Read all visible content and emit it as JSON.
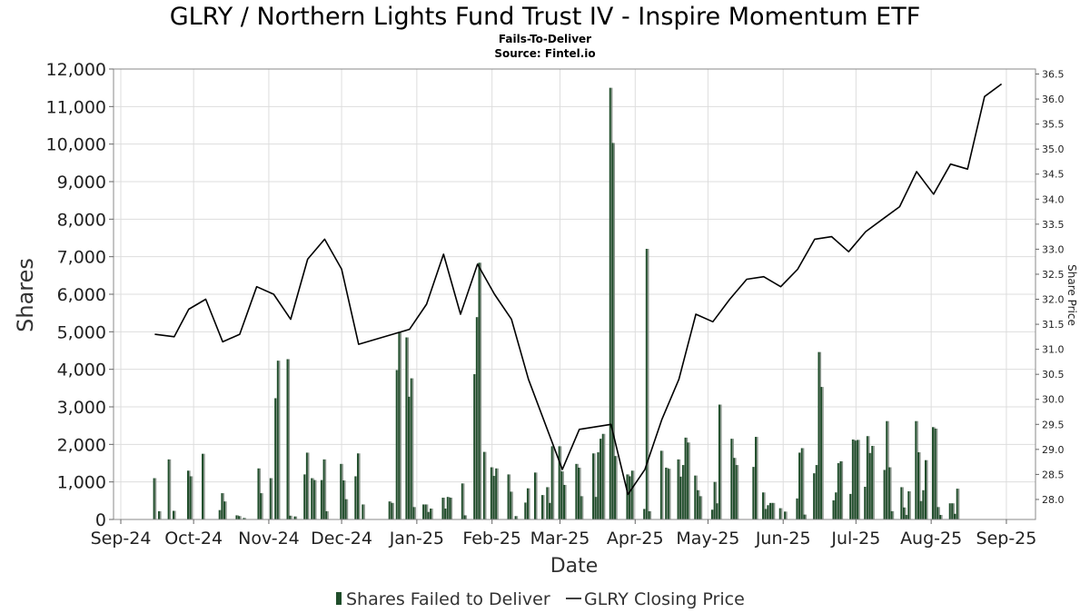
{
  "chart_data": {
    "type": "bar",
    "title": "GLRY / Northern Lights Fund Trust IV - Inspire Momentum ETF",
    "subtitle_lines": [
      "Fails-To-Deliver",
      "Source: Fintel.io"
    ],
    "xlabel": "Date",
    "ylabel": "Shares",
    "y2label": "Share Price",
    "ylim": [
      0,
      12000
    ],
    "y2lim": [
      27.6,
      36.6
    ],
    "y_ticks": [
      "0",
      "1,000",
      "2,000",
      "3,000",
      "4,000",
      "5,000",
      "6,000",
      "7,000",
      "8,000",
      "9,000",
      "10,000",
      "11,000",
      "12,000"
    ],
    "y2_ticks": [
      "28.0",
      "28.5",
      "29.0",
      "29.5",
      "30.0",
      "30.5",
      "31.0",
      "31.5",
      "32.0",
      "32.5",
      "33.0",
      "33.5",
      "34.0",
      "34.5",
      "35.0",
      "35.5",
      "36.0",
      "36.5"
    ],
    "x_range": [
      "2024-09-14",
      "2025-09-29"
    ],
    "x_ticks": [
      {
        "date": "2024-09-17",
        "label": "Sep-24"
      },
      {
        "date": "2024-10-17",
        "label": "Oct-24"
      },
      {
        "date": "2024-11-17",
        "label": "Nov-24"
      },
      {
        "date": "2024-12-17",
        "label": "Dec-24"
      },
      {
        "date": "2025-01-17",
        "label": "Jan-25"
      },
      {
        "date": "2025-02-17",
        "label": "Feb-25"
      },
      {
        "date": "2025-03-17",
        "label": "Mar-25"
      },
      {
        "date": "2025-04-17",
        "label": "Apr-25"
      },
      {
        "date": "2025-05-17",
        "label": "May-25"
      },
      {
        "date": "2025-06-17",
        "label": "Jun-25"
      },
      {
        "date": "2025-07-17",
        "label": "Jul-25"
      },
      {
        "date": "2025-08-17",
        "label": "Aug-25"
      },
      {
        "date": "2025-09-17",
        "label": "Sep-25"
      }
    ],
    "grid": true,
    "legend_position": "bottom-center",
    "series": [
      {
        "name": "Shares Failed to Deliver",
        "kind": "bar",
        "color": "#1f4d2a",
        "points": [
          [
            "2024-10-01",
            1100
          ],
          [
            "2024-10-03",
            220
          ],
          [
            "2024-10-07",
            1600
          ],
          [
            "2024-10-09",
            230
          ],
          [
            "2024-10-15",
            1300
          ],
          [
            "2024-10-16",
            1150
          ],
          [
            "2024-10-21",
            1750
          ],
          [
            "2024-10-28",
            250
          ],
          [
            "2024-10-29",
            700
          ],
          [
            "2024-10-30",
            480
          ],
          [
            "2024-11-04",
            110
          ],
          [
            "2024-11-05",
            90
          ],
          [
            "2024-11-07",
            40
          ],
          [
            "2024-11-13",
            1360
          ],
          [
            "2024-11-14",
            700
          ],
          [
            "2024-11-18",
            1100
          ],
          [
            "2024-11-20",
            3230
          ],
          [
            "2024-11-21",
            4230
          ],
          [
            "2024-11-25",
            4270
          ],
          [
            "2024-11-26",
            100
          ],
          [
            "2024-11-28",
            80
          ],
          [
            "2024-12-02",
            1200
          ],
          [
            "2024-12-03",
            1780
          ],
          [
            "2024-12-05",
            1100
          ],
          [
            "2024-12-06",
            1050
          ],
          [
            "2024-12-09",
            1050
          ],
          [
            "2024-12-10",
            1600
          ],
          [
            "2024-12-11",
            220
          ],
          [
            "2024-12-17",
            1480
          ],
          [
            "2024-12-18",
            1040
          ],
          [
            "2024-12-19",
            540
          ],
          [
            "2024-12-23",
            1150
          ],
          [
            "2024-12-24",
            1760
          ],
          [
            "2024-12-26",
            400
          ],
          [
            "2025-01-06",
            480
          ],
          [
            "2025-01-07",
            440
          ],
          [
            "2025-01-09",
            3980
          ],
          [
            "2025-01-10",
            5000
          ],
          [
            "2025-01-13",
            4850
          ],
          [
            "2025-01-14",
            3270
          ],
          [
            "2025-01-15",
            3760
          ],
          [
            "2025-01-16",
            330
          ],
          [
            "2025-01-20",
            400
          ],
          [
            "2025-01-21",
            400
          ],
          [
            "2025-01-22",
            200
          ],
          [
            "2025-01-23",
            290
          ],
          [
            "2025-01-28",
            580
          ],
          [
            "2025-01-29",
            290
          ],
          [
            "2025-01-30",
            600
          ],
          [
            "2025-01-31",
            580
          ],
          [
            "2025-02-05",
            960
          ],
          [
            "2025-02-06",
            110
          ],
          [
            "2025-02-10",
            3870
          ],
          [
            "2025-02-11",
            5390
          ],
          [
            "2025-02-12",
            6840
          ],
          [
            "2025-02-14",
            1800
          ],
          [
            "2025-02-17",
            1390
          ],
          [
            "2025-02-18",
            1160
          ],
          [
            "2025-02-19",
            1360
          ],
          [
            "2025-02-24",
            1200
          ],
          [
            "2025-02-25",
            740
          ],
          [
            "2025-02-27",
            90
          ],
          [
            "2025-03-03",
            450
          ],
          [
            "2025-03-04",
            830
          ],
          [
            "2025-03-07",
            1250
          ],
          [
            "2025-03-10",
            650
          ],
          [
            "2025-03-12",
            860
          ],
          [
            "2025-03-13",
            440
          ],
          [
            "2025-03-14",
            1950
          ],
          [
            "2025-03-17",
            1950
          ],
          [
            "2025-03-18",
            1280
          ],
          [
            "2025-03-19",
            920
          ],
          [
            "2025-03-24",
            1480
          ],
          [
            "2025-03-25",
            1380
          ],
          [
            "2025-03-26",
            620
          ],
          [
            "2025-03-31",
            1760
          ],
          [
            "2025-04-01",
            600
          ],
          [
            "2025-04-02",
            1790
          ],
          [
            "2025-04-03",
            2150
          ],
          [
            "2025-04-04",
            2280
          ],
          [
            "2025-04-07",
            11500
          ],
          [
            "2025-04-08",
            10030
          ],
          [
            "2025-04-09",
            1690
          ],
          [
            "2025-04-14",
            1200
          ],
          [
            "2025-04-15",
            1150
          ],
          [
            "2025-04-16",
            1300
          ],
          [
            "2025-04-21",
            280
          ],
          [
            "2025-04-22",
            7210
          ],
          [
            "2025-04-23",
            220
          ],
          [
            "2025-04-28",
            1830
          ],
          [
            "2025-04-30",
            1380
          ],
          [
            "2025-05-01",
            1350
          ],
          [
            "2025-05-05",
            1600
          ],
          [
            "2025-05-06",
            1140
          ],
          [
            "2025-05-07",
            1450
          ],
          [
            "2025-05-08",
            2180
          ],
          [
            "2025-05-09",
            2050
          ],
          [
            "2025-05-12",
            1170
          ],
          [
            "2025-05-13",
            780
          ],
          [
            "2025-05-14",
            620
          ],
          [
            "2025-05-19",
            260
          ],
          [
            "2025-05-20",
            1000
          ],
          [
            "2025-05-21",
            430
          ],
          [
            "2025-05-22",
            3060
          ],
          [
            "2025-05-27",
            2150
          ],
          [
            "2025-05-28",
            1640
          ],
          [
            "2025-05-29",
            1450
          ],
          [
            "2025-06-05",
            1400
          ],
          [
            "2025-06-06",
            2200
          ],
          [
            "2025-06-09",
            720
          ],
          [
            "2025-06-10",
            280
          ],
          [
            "2025-06-11",
            380
          ],
          [
            "2025-06-12",
            440
          ],
          [
            "2025-06-13",
            440
          ],
          [
            "2025-06-16",
            300
          ],
          [
            "2025-06-18",
            210
          ],
          [
            "2025-06-23",
            560
          ],
          [
            "2025-06-24",
            1780
          ],
          [
            "2025-06-25",
            1900
          ],
          [
            "2025-06-26",
            130
          ],
          [
            "2025-06-30",
            1230
          ],
          [
            "2025-07-01",
            1450
          ],
          [
            "2025-07-02",
            4460
          ],
          [
            "2025-07-03",
            3530
          ],
          [
            "2025-07-08",
            510
          ],
          [
            "2025-07-09",
            720
          ],
          [
            "2025-07-10",
            1500
          ],
          [
            "2025-07-11",
            1550
          ],
          [
            "2025-07-15",
            680
          ],
          [
            "2025-07-16",
            2130
          ],
          [
            "2025-07-17",
            2100
          ],
          [
            "2025-07-18",
            2120
          ],
          [
            "2025-07-21",
            870
          ],
          [
            "2025-07-22",
            2220
          ],
          [
            "2025-07-23",
            1770
          ],
          [
            "2025-07-24",
            1960
          ],
          [
            "2025-07-29",
            1320
          ],
          [
            "2025-07-30",
            2620
          ],
          [
            "2025-07-31",
            1390
          ],
          [
            "2025-08-01",
            220
          ],
          [
            "2025-08-05",
            860
          ],
          [
            "2025-08-06",
            320
          ],
          [
            "2025-08-07",
            120
          ],
          [
            "2025-08-08",
            750
          ],
          [
            "2025-08-11",
            2620
          ],
          [
            "2025-08-12",
            1790
          ],
          [
            "2025-08-13",
            490
          ],
          [
            "2025-08-14",
            780
          ],
          [
            "2025-08-15",
            1580
          ],
          [
            "2025-08-18",
            2460
          ],
          [
            "2025-08-19",
            2420
          ],
          [
            "2025-08-20",
            330
          ],
          [
            "2025-08-21",
            120
          ],
          [
            "2025-08-25",
            430
          ],
          [
            "2025-08-26",
            430
          ],
          [
            "2025-08-27",
            150
          ],
          [
            "2025-08-28",
            820
          ]
        ]
      },
      {
        "name": "GLRY Closing Price",
        "kind": "line",
        "axis": "right",
        "color": "#000000",
        "points": [
          [
            "2024-10-01",
            31.3
          ],
          [
            "2024-10-09",
            31.25
          ],
          [
            "2024-10-15",
            31.8
          ],
          [
            "2024-10-22",
            32.0
          ],
          [
            "2024-10-29",
            31.15
          ],
          [
            "2024-11-05",
            31.3
          ],
          [
            "2024-11-12",
            32.25
          ],
          [
            "2024-11-19",
            32.1
          ],
          [
            "2024-11-26",
            31.6
          ],
          [
            "2024-12-03",
            32.8
          ],
          [
            "2024-12-10",
            33.2
          ],
          [
            "2024-12-17",
            32.6
          ],
          [
            "2024-12-24",
            31.1
          ],
          [
            "2025-01-14",
            31.4
          ],
          [
            "2025-01-21",
            31.9
          ],
          [
            "2025-01-28",
            32.9
          ],
          [
            "2025-02-04",
            31.7
          ],
          [
            "2025-02-11",
            32.7
          ],
          [
            "2025-02-18",
            32.1
          ],
          [
            "2025-02-25",
            31.6
          ],
          [
            "2025-03-04",
            30.4
          ],
          [
            "2025-03-18",
            28.6
          ],
          [
            "2025-03-25",
            29.4
          ],
          [
            "2025-04-07",
            29.5
          ],
          [
            "2025-04-14",
            28.1
          ],
          [
            "2025-04-21",
            28.6
          ],
          [
            "2025-04-28",
            29.6
          ],
          [
            "2025-05-05",
            30.4
          ],
          [
            "2025-05-12",
            31.7
          ],
          [
            "2025-05-19",
            31.55
          ],
          [
            "2025-05-26",
            32.0
          ],
          [
            "2025-06-02",
            32.4
          ],
          [
            "2025-06-09",
            32.45
          ],
          [
            "2025-06-16",
            32.25
          ],
          [
            "2025-06-23",
            32.6
          ],
          [
            "2025-06-30",
            33.2
          ],
          [
            "2025-07-07",
            33.25
          ],
          [
            "2025-07-14",
            32.95
          ],
          [
            "2025-07-21",
            33.35
          ],
          [
            "2025-07-28",
            33.6
          ],
          [
            "2025-08-04",
            33.85
          ],
          [
            "2025-08-11",
            34.55
          ],
          [
            "2025-08-18",
            34.1
          ],
          [
            "2025-08-25",
            34.7
          ],
          [
            "2025-09-01",
            34.6
          ],
          [
            "2025-09-08",
            36.05
          ],
          [
            "2025-09-15",
            36.3
          ]
        ]
      }
    ]
  },
  "legend": {
    "bar_label": "Shares Failed to Deliver",
    "line_label": "GLRY Closing Price"
  },
  "colors": {
    "bar_dark": "#1f4d2a",
    "bar_light": "#8a958c",
    "line": "#000000",
    "grid": "#dddddd"
  }
}
